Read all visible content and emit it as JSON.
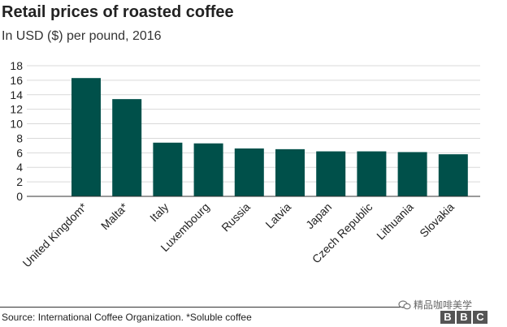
{
  "chart_data": {
    "type": "bar",
    "title": "Retail prices of roasted coffee",
    "subtitle": "In USD ($) per pound, 2016",
    "categories": [
      "United Kingdom*",
      "Malta*",
      "Italy",
      "Luxembourg",
      "Russia",
      "Latvia",
      "Japan",
      "Czech Republic",
      "Lithuania",
      "Slovakia"
    ],
    "values": [
      16.3,
      13.4,
      7.4,
      7.3,
      6.6,
      6.5,
      6.2,
      6.2,
      6.1,
      5.8
    ],
    "yticks": [
      0,
      2,
      4,
      6,
      8,
      10,
      12,
      14,
      16,
      18
    ],
    "ylim": [
      0,
      18
    ],
    "xlabel": "",
    "ylabel": "",
    "bar_color": "#00504a",
    "grid": true
  },
  "footer": {
    "source": "Source: International Coffee Organization. *Soluble coffee",
    "watermark": "精品咖啡美学",
    "brand": [
      "B",
      "B",
      "C"
    ]
  }
}
